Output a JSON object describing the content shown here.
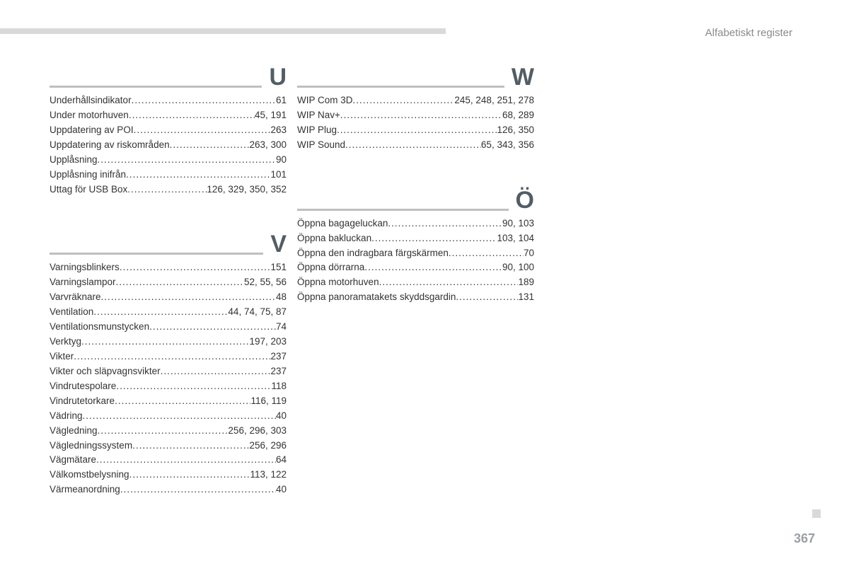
{
  "header": {
    "title": "Alfabetiskt register"
  },
  "page_number": "367",
  "colors": {
    "top_bar": "#d9d9d9",
    "section_rule": "#bfbfbf",
    "letter": "#525d66",
    "text": "#333333",
    "header_text": "#8a8a8a",
    "pagenum": "#9aa0a6"
  },
  "columns": {
    "left": [
      {
        "letter": "U",
        "entries": [
          {
            "term": "Underhållsindikator",
            "pages": "61"
          },
          {
            "term": "Under motorhuven",
            "pages": "45, 191"
          },
          {
            "term": "Uppdatering av POI",
            "pages": "263"
          },
          {
            "term": "Uppdatering av riskområden",
            "pages": "263, 300"
          },
          {
            "term": "Upplåsning",
            "pages": "90"
          },
          {
            "term": "Upplåsning inifrån",
            "pages": "101"
          },
          {
            "term": "Uttag för USB Box",
            "pages": "126, 329, 350, 352"
          }
        ]
      },
      {
        "letter": "V",
        "entries": [
          {
            "term": "Varningsblinkers",
            "pages": "151"
          },
          {
            "term": "Varningslampor",
            "pages": "52, 55, 56"
          },
          {
            "term": "Varvräknare",
            "pages": "48"
          },
          {
            "term": "Ventilation",
            "pages": "44, 74, 75, 87"
          },
          {
            "term": "Ventilationsmunstycken",
            "pages": "74"
          },
          {
            "term": "Verktyg",
            "pages": "197, 203"
          },
          {
            "term": "Vikter",
            "pages": "237"
          },
          {
            "term": "Vikter och släpvagnsvikter",
            "pages": "237"
          },
          {
            "term": "Vindrutespolare",
            "pages": "118"
          },
          {
            "term": "Vindrutetorkare",
            "pages": "116, 119"
          },
          {
            "term": "Vädring",
            "pages": "40"
          },
          {
            "term": "Vägledning",
            "pages": "256, 296, 303"
          },
          {
            "term": "Vägledningssystem",
            "pages": "256, 296"
          },
          {
            "term": "Vägmätare",
            "pages": "64"
          },
          {
            "term": "Välkomstbelysning",
            "pages": "113, 122"
          },
          {
            "term": "Värmeanordning",
            "pages": "40"
          }
        ]
      }
    ],
    "right": [
      {
        "letter": "W",
        "entries": [
          {
            "term": "WIP Com 3D",
            "pages": "245, 248, 251, 278"
          },
          {
            "term": "WIP Nav+",
            "pages": "68, 289"
          },
          {
            "term": "WIP Plug",
            "pages": "126, 350"
          },
          {
            "term": "WIP Sound",
            "pages": "65, 343, 356"
          }
        ]
      },
      {
        "letter": "Ö",
        "entries": [
          {
            "term": "Öppna bagageluckan",
            "pages": "90, 103"
          },
          {
            "term": "Öppna bakluckan",
            "pages": "103, 104"
          },
          {
            "term": "Öppna den indragbara färgskärmen",
            "pages": "70"
          },
          {
            "term": "Öppna dörrarna",
            "pages": "90, 100"
          },
          {
            "term": "Öppna motorhuven",
            "pages": "189"
          },
          {
            "term": "Öppna panoramatakets skyddsgardin",
            "pages": "131"
          }
        ]
      }
    ]
  }
}
